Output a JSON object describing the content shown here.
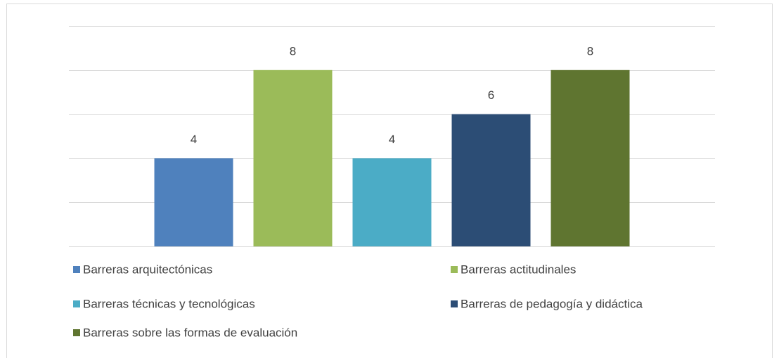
{
  "chart_data": {
    "type": "bar",
    "series": [
      {
        "name": "Barreras arquitectónicas",
        "color": "#4f81bd",
        "values": [
          4
        ]
      },
      {
        "name": "Barreras actitudinales",
        "color": "#9bbb59",
        "values": [
          8
        ]
      },
      {
        "name": "Barreras técnicas y tecnológicas",
        "color": "#4bacc6",
        "values": [
          4
        ]
      },
      {
        "name": "Barreras de pedagogía y didáctica",
        "color": "#2c4d75",
        "values": [
          6
        ]
      },
      {
        "name": "Barreras sobre las formas de evaluación",
        "color": "#5f7530",
        "values": [
          8
        ]
      }
    ],
    "ylim": [
      0,
      10
    ],
    "yticks": [
      0,
      2,
      4,
      6,
      8,
      10
    ],
    "grid": true,
    "legend": "bottom"
  }
}
